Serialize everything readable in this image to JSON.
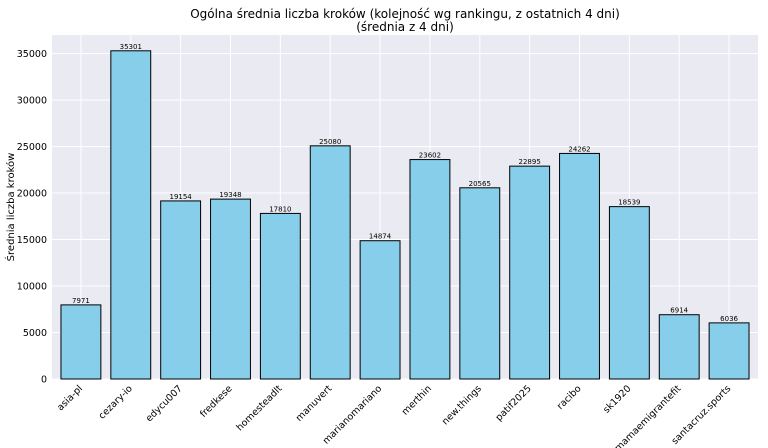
{
  "chart_data": {
    "type": "bar",
    "title": "Ogólna średnia liczba kroków (kolejność wg rankingu, z ostatnich 4 dni)",
    "subtitle": "(średnia z 4 dni)",
    "xlabel": "",
    "ylabel": "Średnia liczba kroków",
    "ylim": [
      0,
      37000
    ],
    "yticks": [
      0,
      5000,
      10000,
      15000,
      20000,
      25000,
      30000,
      35000
    ],
    "categories": [
      "asia-pl",
      "cezary-io",
      "edycu007",
      "fredkese",
      "homesteadlt",
      "manuvert",
      "marianomariano",
      "merthin",
      "new.things",
      "patif2025",
      "racibo",
      "sk1920",
      "mamaemigrantefit",
      "santacruz.sports"
    ],
    "values": [
      7971,
      35301,
      19154,
      19348,
      17810,
      25080,
      14874,
      23602,
      20565,
      22895,
      24262,
      18539,
      6914,
      6036
    ],
    "bar_color": "#87ceeb",
    "bar_edge_color": "#000000",
    "plot_background": "#eaeaf2",
    "grid": true,
    "legend": "none"
  }
}
